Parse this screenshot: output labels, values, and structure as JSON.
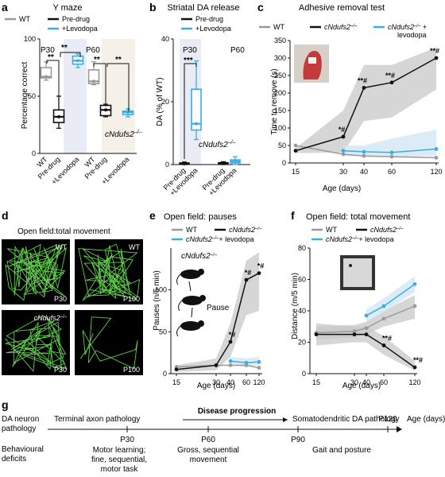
{
  "colors": {
    "wt": "#9a9a9a",
    "mutant": "#111111",
    "levodopa": "#3aaee0",
    "gray_band": "#c8c8c8",
    "blue_band": "#cfe6f4"
  },
  "panels": {
    "a": {
      "letter": "a",
      "title": "Y maze",
      "ylabel": "Percentage correct",
      "legend": [
        "WT",
        "Pre-drug",
        "+Levodopa"
      ],
      "p30": "P30",
      "p60": "P60",
      "sig": "**",
      "mutant_label": "cNdufs2",
      "xticks": [
        "WT",
        "Pre-drug",
        "+Levodopa",
        "WT",
        "Pre-drug",
        "+Levodopa"
      ]
    },
    "b": {
      "letter": "b",
      "title": "Striatal DA release",
      "ylabel": "DA (% of WT)",
      "legend": [
        "Pre-drug",
        "+Levodopa"
      ],
      "p30": "P30",
      "p60": "P60",
      "sig": "***",
      "mutant_label": "cNdufs2",
      "xticks": [
        "Pre-drug",
        "+Levodopa",
        "Pre-drug",
        "+Levodopa"
      ]
    },
    "c": {
      "letter": "c",
      "title": "Adhesive removal test",
      "ylabel": "Time to remove (s)",
      "xlabel": "Age (days)",
      "legend": [
        "WT",
        "cNdufs2",
        "cNdufs2",
        "levodopa"
      ],
      "sig_labels": [
        "*#",
        "**#",
        "**#",
        "**#"
      ]
    },
    "d": {
      "letter": "d",
      "title": "Open field:total movement",
      "tiles": [
        "WT",
        "WT",
        "cNdufs2",
        "",
        "P30",
        "P100",
        "P30",
        "P100"
      ]
    },
    "e": {
      "letter": "e",
      "title": "Open field: pauses",
      "ylabel": "Pauses (n/5 min)",
      "xlabel": "Age (days)",
      "legend": [
        "WT",
        "cNdufs2",
        "cNdufs2",
        "+ levodopa"
      ],
      "inset_label": "cNdufs2",
      "pause_label": "Pause",
      "sig_labels": [
        "*#",
        "*#",
        "*#"
      ]
    },
    "f": {
      "letter": "f",
      "title": "Open field: total movement",
      "ylabel": "Distance (m/5 min)",
      "xlabel": "Age (days)",
      "legend": [
        "WT",
        "cNdufs2",
        "cNdufs2",
        "+ levodopa"
      ],
      "sig_labels": [
        "**#",
        "**#"
      ]
    },
    "g": {
      "letter": "g",
      "row1_label": [
        "DA neuron",
        "pathology"
      ],
      "row2_label": [
        "Behavioural",
        "deficits"
      ],
      "terminal": "Terminal axon pathology",
      "progression": "Disease progression",
      "somato": "Somatodendritic DA pathology",
      "ticks": [
        "P30",
        "P60",
        "P90",
        "P120"
      ],
      "age_label": "Age (days)",
      "deficit1": [
        "Motor learning;",
        "fine, sequential,",
        "motor task"
      ],
      "deficit2": [
        "Gross, sequential",
        "movement"
      ],
      "deficit3": [
        "Gait and posture"
      ]
    }
  },
  "chart_data": [
    {
      "panel": "a",
      "type": "box",
      "title": "Y maze",
      "ylabel": "Percentage correct",
      "ylim": [
        0,
        100
      ],
      "yticks": [
        0,
        50,
        100
      ],
      "categories": [
        "WT",
        "Pre-drug",
        "+Levodopa",
        "WT",
        "Pre-drug",
        "+Levodopa"
      ],
      "groups": [
        "P30",
        "P30",
        "P30",
        "P60",
        "P60",
        "P60"
      ],
      "boxes": [
        {
          "min": 64,
          "q1": 66,
          "median": 67,
          "q3": 75,
          "max": 80
        },
        {
          "min": 22,
          "q1": 27,
          "median": 32,
          "q3": 38,
          "max": 50
        },
        {
          "min": 75,
          "q1": 78,
          "median": 81,
          "q3": 85,
          "max": 87
        },
        {
          "min": 60,
          "q1": 61,
          "median": 63,
          "q3": 73,
          "max": 80
        },
        {
          "min": 32,
          "q1": 33,
          "median": 38,
          "q3": 42,
          "max": 43
        },
        {
          "min": 32,
          "q1": 34,
          "median": 36,
          "q3": 37,
          "max": 39
        }
      ]
    },
    {
      "panel": "b",
      "type": "box",
      "title": "Striatal DA release",
      "ylabel": "DA (% of WT)",
      "ylim": [
        0,
        40
      ],
      "yticks": [
        0,
        20,
        40
      ],
      "categories": [
        "Pre-drug",
        "+Levodopa",
        "Pre-drug",
        "+Levodopa"
      ],
      "groups": [
        "P30",
        "P30",
        "P60",
        "P60"
      ],
      "boxes": [
        {
          "min": 0,
          "q1": 0.1,
          "median": 0.3,
          "q3": 0.5,
          "max": 0.8
        },
        {
          "min": 8,
          "q1": 11,
          "median": 13,
          "q3": 24,
          "max": 33
        },
        {
          "min": 0,
          "q1": 0.2,
          "median": 0.4,
          "q3": 0.6,
          "max": 0.9
        },
        {
          "min": 0,
          "q1": 0.5,
          "median": 1,
          "q3": 1.5,
          "max": 2.5
        }
      ]
    },
    {
      "panel": "c",
      "type": "line",
      "title": "Adhesive removal test",
      "xlabel": "Age (days)",
      "ylabel": "Time to remove (s)",
      "x": [
        15,
        30,
        40,
        60,
        120
      ],
      "xticks": [
        15,
        30,
        40,
        60,
        120
      ],
      "ylim": [
        0,
        350
      ],
      "yticks": [
        0,
        50,
        100,
        150,
        200,
        250,
        300,
        350
      ],
      "series": [
        {
          "name": "WT",
          "x": [
            15,
            30,
            40,
            60,
            120
          ],
          "values": [
            50,
            25,
            20,
            18,
            15
          ]
        },
        {
          "name": "cNdufs2",
          "x": [
            15,
            30,
            40,
            60,
            120
          ],
          "values": [
            35,
            75,
            215,
            230,
            300
          ],
          "band_low": [
            28,
            30,
            120,
            130,
            210
          ],
          "band_high": [
            42,
            150,
            280,
            280,
            330
          ]
        },
        {
          "name": "cNdufs2 + levodopa",
          "x": [
            30,
            40,
            60,
            120
          ],
          "values": [
            35,
            32,
            30,
            40
          ],
          "band_low": [
            20,
            20,
            18,
            20
          ],
          "band_high": [
            50,
            50,
            70,
            95
          ]
        }
      ]
    },
    {
      "panel": "e",
      "type": "line",
      "title": "Open field: pauses",
      "xlabel": "Age (days)",
      "ylabel": "Pauses (n/5 min)",
      "x": [
        15,
        30,
        40,
        60,
        120
      ],
      "xticks": [
        15,
        30,
        40,
        60,
        120
      ],
      "ylim": [
        0,
        150
      ],
      "yticks": [
        0,
        50,
        100
      ],
      "series": [
        {
          "name": "WT",
          "x": [
            15,
            30,
            40,
            60,
            120
          ],
          "values": [
            8,
            10,
            10,
            10,
            7
          ]
        },
        {
          "name": "cNdufs2",
          "x": [
            15,
            30,
            40,
            60,
            120
          ],
          "values": [
            5,
            10,
            38,
            112,
            120
          ],
          "band_low": [
            2,
            4,
            20,
            70,
            75
          ],
          "band_high": [
            10,
            18,
            60,
            135,
            145
          ]
        },
        {
          "name": "cNdufs2 + levodopa",
          "x": [
            40,
            60,
            120
          ],
          "values": [
            15,
            13,
            14
          ],
          "band_low": [
            10,
            8,
            10
          ],
          "band_high": [
            20,
            18,
            20
          ]
        }
      ]
    },
    {
      "panel": "f",
      "type": "line",
      "title": "Open field: total movement",
      "xlabel": "Age (days)",
      "ylabel": "Distance (m/5 min)",
      "x": [
        15,
        30,
        40,
        60,
        120
      ],
      "xticks": [
        15,
        30,
        40,
        60,
        120
      ],
      "ylim": [
        0,
        80
      ],
      "yticks": [
        0,
        20,
        40,
        60,
        80
      ],
      "series": [
        {
          "name": "WT",
          "x": [
            15,
            30,
            40,
            60,
            120
          ],
          "values": [
            26,
            27,
            29,
            35,
            43
          ],
          "band_low": [
            22,
            23,
            25,
            30,
            35
          ],
          "band_high": [
            30,
            31,
            33,
            40,
            50
          ]
        },
        {
          "name": "cNdufs2",
          "x": [
            15,
            30,
            40,
            60,
            120
          ],
          "values": [
            25,
            25,
            25,
            18,
            4
          ],
          "band_low": [
            18,
            20,
            20,
            12,
            2
          ],
          "band_high": [
            32,
            30,
            30,
            24,
            8
          ]
        },
        {
          "name": "cNdufs2 + levodopa",
          "x": [
            40,
            60,
            120
          ],
          "values": [
            37,
            43,
            57
          ],
          "band_low": [
            33,
            39,
            52
          ],
          "band_high": [
            41,
            48,
            62
          ]
        }
      ]
    }
  ]
}
